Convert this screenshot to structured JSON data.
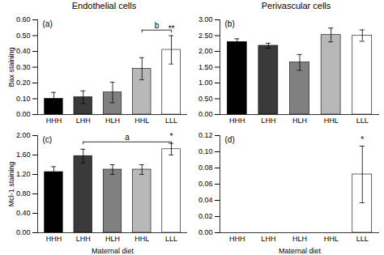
{
  "chart_data": [
    {
      "type": "bar",
      "title": "Endothelial cells",
      "ylabel": "Bax staining",
      "categories": [
        "HHH",
        "LHH",
        "HLH",
        "HHL",
        "LLL"
      ],
      "values": [
        0.1,
        0.11,
        0.14,
        0.29,
        0.41
      ],
      "errors": [
        0.04,
        0.04,
        0.065,
        0.07,
        0.09
      ],
      "colors": [
        "#000000",
        "#3a3a3a",
        "#808080",
        "#b8b8b8",
        "#ffffff"
      ],
      "ylim": [
        0,
        0.6
      ],
      "yticks": [
        {
          "value": 0.0,
          "label": "0.00"
        },
        {
          "value": 0.1,
          "label": "0.10"
        },
        {
          "value": 0.2,
          "label": "0.20"
        },
        {
          "value": 0.3,
          "label": "0.30"
        },
        {
          "value": 0.4,
          "label": "0.40"
        },
        {
          "value": 0.5,
          "label": "0.50"
        },
        {
          "value": 0.6,
          "label": "0.60"
        }
      ],
      "grid": false,
      "annotations": [
        {
          "text": "(a)"
        },
        {
          "text": "**",
          "category": "LLL"
        },
        {
          "text": "b",
          "from": "HHL",
          "to": "LLL",
          "y": 0.535
        }
      ]
    },
    {
      "type": "bar",
      "title": "Perivascular cells",
      "categories": [
        "HHH",
        "LHH",
        "HLH",
        "HHL",
        "LLL"
      ],
      "values": [
        2.3,
        2.18,
        1.65,
        2.52,
        2.5
      ],
      "errors": [
        0.1,
        0.08,
        0.25,
        0.22,
        0.18
      ],
      "colors": [
        "#000000",
        "#3a3a3a",
        "#808080",
        "#b8b8b8",
        "#ffffff"
      ],
      "ylim": [
        0,
        3.0
      ],
      "yticks": [
        {
          "value": 0.0,
          "label": "0.00"
        },
        {
          "value": 0.5,
          "label": "0.50"
        },
        {
          "value": 1.0,
          "label": "1.00"
        },
        {
          "value": 1.5,
          "label": "1.50"
        },
        {
          "value": 2.0,
          "label": "2.00"
        },
        {
          "value": 2.5,
          "label": "2.50"
        },
        {
          "value": 3.0,
          "label": "3.00"
        }
      ],
      "grid": false,
      "annotations": [
        {
          "text": "(b)"
        }
      ]
    },
    {
      "type": "bar",
      "xlabel": "Maternal diet",
      "ylabel": "Mcl-1 staining",
      "categories": [
        "HHH",
        "LHH",
        "HLH",
        "HHL",
        "LLL"
      ],
      "values": [
        1.25,
        1.58,
        1.3,
        1.3,
        1.72
      ],
      "errors": [
        0.11,
        0.14,
        0.1,
        0.1,
        0.12
      ],
      "colors": [
        "#000000",
        "#3a3a3a",
        "#808080",
        "#b8b8b8",
        "#ffffff"
      ],
      "ylim": [
        0,
        2.0
      ],
      "yticks": [
        {
          "value": 0.0,
          "label": "0.00"
        },
        {
          "value": 0.4,
          "label": "0.40"
        },
        {
          "value": 0.8,
          "label": "0.80"
        },
        {
          "value": 1.2,
          "label": "1.20"
        },
        {
          "value": 1.6,
          "label": "1.60"
        },
        {
          "value": 2.0,
          "label": "2.00"
        }
      ],
      "grid": false,
      "annotations": [
        {
          "text": "(c)"
        },
        {
          "text": "*",
          "category": "LLL"
        },
        {
          "text": "a",
          "from": "LHH",
          "to": "LLL",
          "y": 1.87
        }
      ]
    },
    {
      "type": "bar",
      "xlabel": "Maternal diet",
      "categories": [
        "HHH",
        "LHH",
        "HLH",
        "HHL",
        "LLL"
      ],
      "values": [
        0.0,
        0.0,
        0.0,
        0.0,
        0.072
      ],
      "errors": [
        0.0,
        0.0,
        0.0,
        0.0,
        0.035
      ],
      "colors": [
        "#000000",
        "#3a3a3a",
        "#808080",
        "#b8b8b8",
        "#ffffff"
      ],
      "ylim": [
        0,
        0.12
      ],
      "yticks": [
        {
          "value": 0.0,
          "label": "0.00"
        },
        {
          "value": 0.02,
          "label": "0.02"
        },
        {
          "value": 0.04,
          "label": "0.04"
        },
        {
          "value": 0.06,
          "label": "0.06"
        },
        {
          "value": 0.08,
          "label": "0.08"
        },
        {
          "value": 0.1,
          "label": "0.10"
        },
        {
          "value": 0.12,
          "label": "0.12"
        }
      ],
      "grid": false,
      "annotations": [
        {
          "text": "(d)"
        },
        {
          "text": "*",
          "category": "LLL"
        }
      ]
    }
  ]
}
